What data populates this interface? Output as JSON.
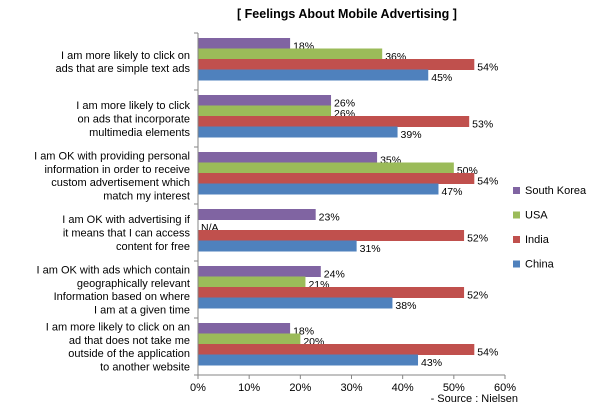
{
  "chart_data": {
    "type": "bar",
    "orientation": "horizontal",
    "title": "[ Feelings About Mobile Advertising ]",
    "source": "- Source : Nielsen",
    "categories": [
      [
        "I am more likely to click on",
        "ads that are simple text ads"
      ],
      [
        "I am more likely to click",
        "on ads that incorporate",
        "multimedia elements"
      ],
      [
        "I am OK with providing personal",
        "information in order to receive",
        "custom advertisement which",
        "match my interest"
      ],
      [
        "I am OK with advertising if",
        "it means that I can access",
        "content for free"
      ],
      [
        "I am OK with ads which contain",
        "geographically relevant",
        "Information based on where",
        "I am at a given time"
      ],
      [
        "I am more likely to click on an",
        "ad that does not take me",
        "outside of the application",
        "to another website"
      ]
    ],
    "series": [
      {
        "name": "South Korea",
        "color": "#8064a2",
        "values": [
          18,
          26,
          35,
          23,
          24,
          18
        ],
        "labels": [
          "18%",
          "26%",
          "35%",
          "23%",
          "24%",
          "18%"
        ]
      },
      {
        "name": "USA",
        "color": "#9bbb59",
        "values": [
          36,
          26,
          50,
          null,
          21,
          20
        ],
        "labels": [
          "36%",
          "26%",
          "50%",
          "N/A",
          "21%",
          "20%"
        ]
      },
      {
        "name": "India",
        "color": "#c0504d",
        "values": [
          54,
          53,
          54,
          52,
          52,
          54
        ],
        "labels": [
          "54%",
          "53%",
          "54%",
          "52%",
          "52%",
          "54%"
        ]
      },
      {
        "name": "China",
        "color": "#4f81bd",
        "values": [
          45,
          39,
          47,
          31,
          38,
          43
        ],
        "labels": [
          "45%",
          "39%",
          "47%",
          "31%",
          "38%",
          "43%"
        ]
      }
    ],
    "xlim": [
      0,
      60
    ],
    "xticks": [
      "0%",
      "10%",
      "20%",
      "30%",
      "40%",
      "50%",
      "60%"
    ],
    "legend_position": "right",
    "grid": false
  }
}
